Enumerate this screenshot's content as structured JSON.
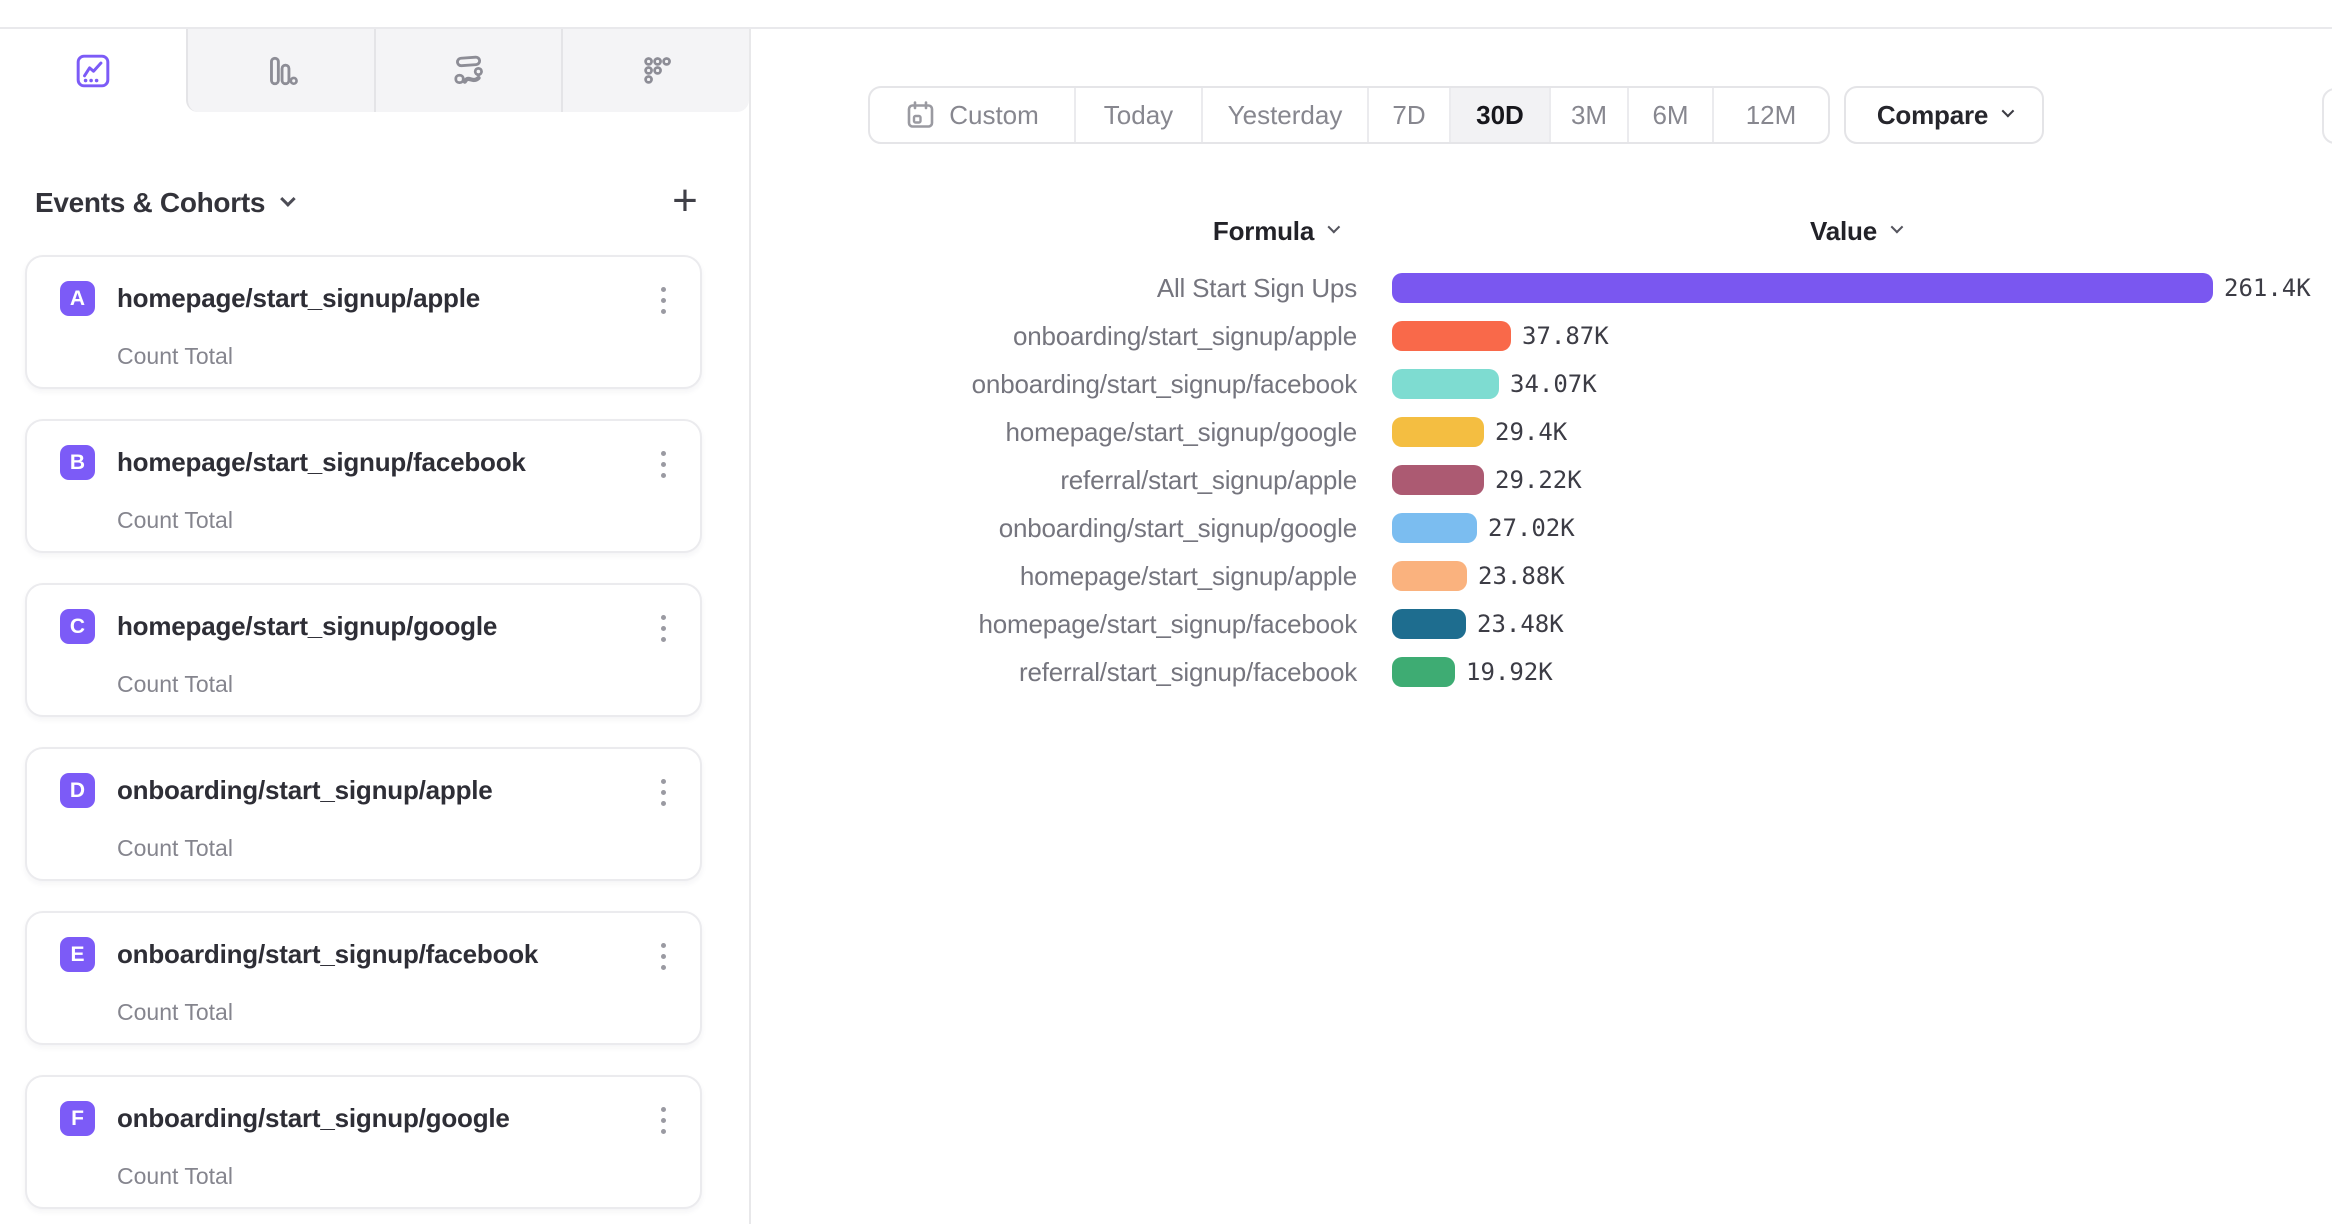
{
  "accent_color": "#7c5bf7",
  "tabs": [
    {
      "name": "insights",
      "icon": "insights-icon",
      "selected": true
    },
    {
      "name": "funnels",
      "icon": "funnels-icon",
      "selected": false
    },
    {
      "name": "flows",
      "icon": "flows-icon",
      "selected": false
    },
    {
      "name": "retention",
      "icon": "retention-icon",
      "selected": false
    }
  ],
  "sidebar": {
    "header": {
      "title": "Events & Cohorts",
      "add_label": "+"
    },
    "cards": [
      {
        "letter": "A",
        "title": "homepage/start_signup/apple",
        "metric": "Count Total"
      },
      {
        "letter": "B",
        "title": "homepage/start_signup/facebook",
        "metric": "Count Total"
      },
      {
        "letter": "C",
        "title": "homepage/start_signup/google",
        "metric": "Count Total"
      },
      {
        "letter": "D",
        "title": "onboarding/start_signup/apple",
        "metric": "Count Total"
      },
      {
        "letter": "E",
        "title": "onboarding/start_signup/facebook",
        "metric": "Count Total"
      },
      {
        "letter": "F",
        "title": "onboarding/start_signup/google",
        "metric": "Count Total"
      }
    ]
  },
  "toolbar": {
    "date_ranges": [
      {
        "label": "Custom",
        "icon": "calendar-icon",
        "selected": false
      },
      {
        "label": "Today",
        "selected": false
      },
      {
        "label": "Yesterday",
        "selected": false
      },
      {
        "label": "7D",
        "selected": false
      },
      {
        "label": "30D",
        "selected": true
      },
      {
        "label": "3M",
        "selected": false
      },
      {
        "label": "6M",
        "selected": false
      },
      {
        "label": "12M",
        "selected": false
      }
    ],
    "compare_label": "Compare"
  },
  "chart": {
    "columns": [
      {
        "label": "Formula"
      },
      {
        "label": "Value"
      }
    ]
  },
  "chart_data": {
    "type": "bar",
    "orientation": "horizontal",
    "title": "",
    "xlabel": "Value",
    "ylabel": "Formula",
    "xlim": [
      0,
      261400
    ],
    "grid": false,
    "legend": false,
    "categories": [
      "All Start Sign Ups",
      "onboarding/start_signup/apple",
      "onboarding/start_signup/facebook",
      "homepage/start_signup/google",
      "referral/start_signup/apple",
      "onboarding/start_signup/google",
      "homepage/start_signup/apple",
      "homepage/start_signup/facebook",
      "referral/start_signup/facebook"
    ],
    "values": [
      261400,
      37870,
      34070,
      29400,
      29220,
      27020,
      23880,
      23480,
      19920
    ],
    "value_labels": [
      "261.4K",
      "37.87K",
      "34.07K",
      "29.4K",
      "29.22K",
      "27.02K",
      "23.88K",
      "23.48K",
      "19.92K"
    ],
    "colors": [
      "#7a57f0",
      "#f9694a",
      "#7edcd1",
      "#f4be41",
      "#ac5a72",
      "#7bbdf0",
      "#fab27e",
      "#1e6d8f",
      "#3eac73"
    ]
  }
}
